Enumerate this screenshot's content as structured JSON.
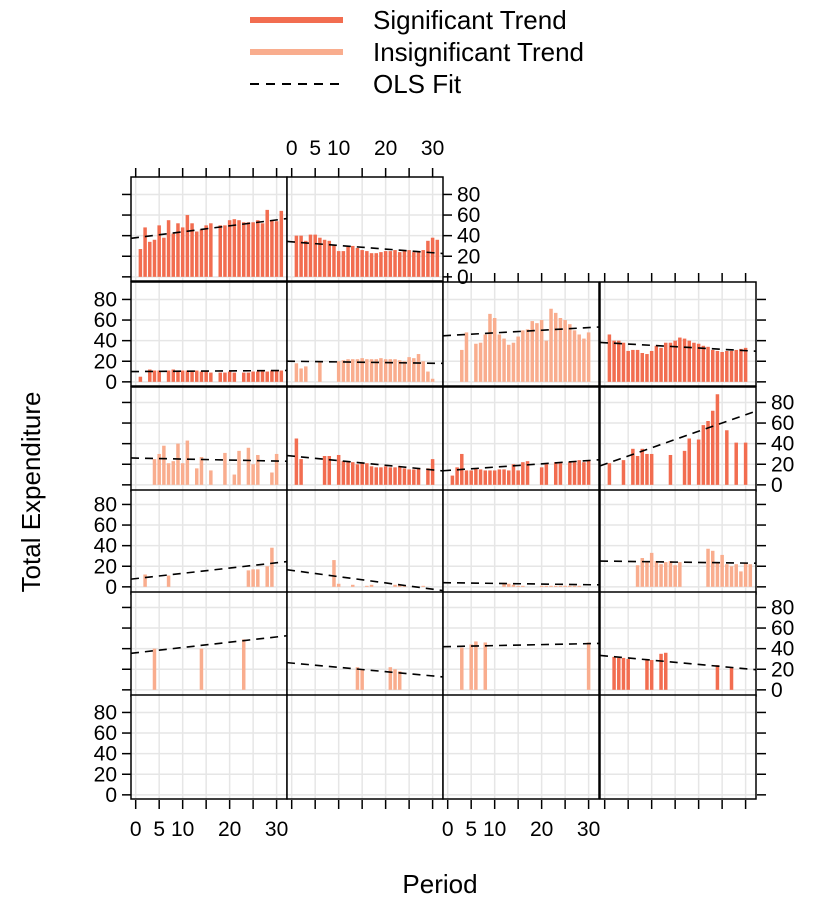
{
  "chart_data": {
    "type": "bar",
    "xlabel": "Period",
    "ylabel": "Total Expenditure",
    "xlim": [
      -1,
      32
    ],
    "ylim": [
      -5,
      95
    ],
    "x_ticks": [
      0,
      5,
      10,
      15,
      20,
      25,
      30
    ],
    "x_tick_labels": [
      "0",
      "5",
      "10",
      "",
      "20",
      "",
      "30"
    ],
    "y_ticks": [
      0,
      20,
      40,
      60,
      80
    ],
    "y_tick_labels": [
      "0",
      "20",
      "40",
      "60",
      "80"
    ],
    "grid": true,
    "legend_position": "top-center",
    "colors": {
      "significant": "#f26d50",
      "insignificant": "#f9ad8e",
      "ols": "#000000"
    },
    "legend": [
      {
        "key": "significant",
        "label": "Significant Trend",
        "style": "line"
      },
      {
        "key": "insignificant",
        "label": "Insignificant Trend",
        "style": "line"
      },
      {
        "key": "ols",
        "label": "OLS Fit",
        "style": "dashed"
      }
    ],
    "panels": [
      {
        "row": 0,
        "col": 0,
        "trend": "significant",
        "ols": [
          38,
          56
        ],
        "x": [
          1,
          2,
          3,
          4,
          5,
          6,
          7,
          8,
          9,
          10,
          11,
          12,
          13,
          14,
          15,
          16,
          18,
          19,
          20,
          21,
          22,
          23,
          24,
          25,
          26,
          27,
          28,
          29,
          30,
          31
        ],
        "y": [
          27,
          48,
          34,
          36,
          50,
          38,
          55,
          42,
          52,
          48,
          60,
          52,
          44,
          46,
          50,
          52,
          50,
          50,
          55,
          56,
          55,
          53,
          53,
          53,
          55,
          52,
          65,
          55,
          54,
          64
        ]
      },
      {
        "row": 0,
        "col": 1,
        "trend": "significant",
        "ols": [
          34,
          23
        ],
        "x": [
          1,
          2,
          3,
          4,
          5,
          6,
          7,
          8,
          9,
          10,
          11,
          12,
          13,
          14,
          15,
          16,
          17,
          18,
          19,
          20,
          21,
          22,
          23,
          24,
          25,
          26,
          27,
          28,
          29,
          30,
          31
        ],
        "y": [
          40,
          40,
          35,
          41,
          41,
          38,
          36,
          35,
          31,
          25,
          25,
          29,
          30,
          28,
          26,
          25,
          23,
          23,
          24,
          25,
          25,
          26,
          24,
          25,
          26,
          24,
          24,
          26,
          35,
          38,
          36
        ]
      },
      {
        "row": 1,
        "col": 0,
        "trend": "significant",
        "ols": [
          10,
          11
        ],
        "x": [
          1,
          3,
          4,
          5,
          7,
          8,
          9,
          10,
          11,
          12,
          13,
          14,
          15,
          16,
          18,
          19,
          20,
          21,
          23,
          24,
          25,
          26,
          27,
          28,
          29,
          30,
          31
        ],
        "y": [
          5,
          12,
          11,
          11,
          11,
          12,
          10,
          11,
          11,
          10,
          11,
          10,
          10,
          9,
          9,
          9,
          10,
          9,
          9,
          9,
          10,
          10,
          10,
          10,
          11,
          11,
          11
        ]
      },
      {
        "row": 1,
        "col": 1,
        "trend": "insignificant",
        "ols": [
          20,
          18
        ],
        "x": [
          1,
          2,
          3,
          6,
          10,
          11,
          12,
          13,
          14,
          15,
          16,
          17,
          18,
          19,
          20,
          21,
          22,
          23,
          24,
          25,
          26,
          27,
          28,
          29,
          30
        ],
        "y": [
          18,
          13,
          15,
          20,
          20,
          21,
          22,
          22,
          22,
          23,
          22,
          22,
          22,
          23,
          22,
          22,
          22,
          21,
          20,
          24,
          23,
          27,
          20,
          10,
          3
        ]
      },
      {
        "row": 1,
        "col": 2,
        "trend": "insignificant",
        "ols": [
          45,
          53
        ],
        "x": [
          3,
          4,
          6,
          7,
          8,
          9,
          10,
          11,
          12,
          13,
          14,
          15,
          16,
          17,
          18,
          19,
          20,
          21,
          22,
          23,
          24,
          25,
          26,
          27,
          28,
          29,
          30
        ],
        "y": [
          31,
          48,
          37,
          38,
          46,
          66,
          62,
          46,
          42,
          36,
          38,
          44,
          50,
          51,
          59,
          57,
          60,
          40,
          71,
          67,
          62,
          60,
          56,
          50,
          46,
          42,
          48
        ]
      },
      {
        "row": 1,
        "col": 3,
        "trend": "significant",
        "ols": [
          38,
          30
        ],
        "x": [
          1,
          2,
          3,
          4,
          5,
          6,
          7,
          8,
          9,
          10,
          11,
          12,
          13,
          14,
          15,
          16,
          17,
          18,
          19,
          20,
          21,
          22,
          23,
          24,
          25,
          26,
          27,
          28,
          29,
          30
        ],
        "y": [
          46,
          40,
          40,
          38,
          30,
          31,
          31,
          28,
          27,
          30,
          35,
          33,
          38,
          38,
          40,
          43,
          42,
          40,
          38,
          37,
          35,
          34,
          31,
          30,
          29,
          30,
          30,
          31,
          32,
          33
        ]
      },
      {
        "row": 2,
        "col": 0,
        "trend": "insignificant",
        "ols": [
          26,
          23
        ],
        "x": [
          4,
          5,
          6,
          7,
          8,
          9,
          10,
          11,
          13,
          14,
          16,
          19,
          21,
          22,
          24,
          25,
          26,
          29,
          30
        ],
        "y": [
          25,
          30,
          38,
          21,
          23,
          40,
          21,
          43,
          16,
          27,
          14,
          31,
          10,
          33,
          36,
          20,
          29,
          12,
          30
        ]
      },
      {
        "row": 2,
        "col": 1,
        "trend": "significant",
        "ols": [
          28,
          14
        ],
        "x": [
          1,
          2,
          7,
          8,
          10,
          11,
          12,
          13,
          14,
          15,
          16,
          17,
          18,
          19,
          20,
          21,
          22,
          23,
          24,
          25,
          26,
          27,
          29,
          30
        ],
        "y": [
          45,
          25,
          28,
          28,
          29,
          23,
          22,
          22,
          20,
          21,
          21,
          18,
          17,
          17,
          18,
          17,
          17,
          18,
          16,
          15,
          15,
          16,
          16,
          25
        ]
      },
      {
        "row": 2,
        "col": 2,
        "trend": "significant",
        "ols": [
          14,
          24
        ],
        "x": [
          1,
          2,
          3,
          4,
          5,
          6,
          7,
          8,
          9,
          10,
          11,
          12,
          13,
          14,
          15,
          16,
          17,
          20,
          21,
          23,
          24,
          26,
          27,
          28,
          29,
          30
        ],
        "y": [
          9,
          17,
          30,
          14,
          14,
          16,
          15,
          14,
          14,
          14,
          15,
          15,
          14,
          20,
          14,
          22,
          23,
          17,
          20,
          22,
          21,
          22,
          22,
          24,
          22,
          24
        ]
      },
      {
        "row": 2,
        "col": 3,
        "trend": "significant",
        "ols": [
          20,
          70
        ],
        "x": [
          1,
          4,
          6,
          7,
          8,
          9,
          10,
          14,
          17,
          18,
          20,
          21,
          22,
          23,
          24,
          26,
          28,
          30
        ],
        "y": [
          21,
          24,
          35,
          28,
          35,
          30,
          30,
          29,
          33,
          45,
          44,
          58,
          62,
          72,
          88,
          53,
          41,
          41
        ]
      },
      {
        "row": 3,
        "col": 0,
        "trend": "insignificant",
        "ols": [
          8,
          24
        ],
        "x": [
          2,
          7,
          24,
          25,
          26,
          28,
          29
        ],
        "y": [
          12,
          11,
          16,
          17,
          17,
          20,
          38
        ]
      },
      {
        "row": 3,
        "col": 1,
        "trend": "insignificant",
        "ols": [
          16,
          -3
        ],
        "x": [
          9,
          10,
          13,
          16,
          17,
          22,
          23,
          24,
          28
        ],
        "y": [
          26,
          3,
          2,
          1,
          2,
          2,
          2,
          1,
          1
        ]
      },
      {
        "row": 3,
        "col": 2,
        "trend": "insignificant",
        "ols": [
          4,
          2
        ],
        "x": [
          12,
          13,
          14,
          15,
          16,
          20,
          21,
          22,
          23,
          24,
          25,
          26,
          27,
          28
        ],
        "y": [
          4,
          3,
          2,
          1,
          1,
          1,
          1,
          1,
          1,
          1,
          1,
          1,
          1,
          1
        ]
      },
      {
        "row": 3,
        "col": 3,
        "trend": "insignificant",
        "ols": [
          25,
          23
        ],
        "x": [
          7,
          8,
          9,
          10,
          11,
          12,
          13,
          14,
          15,
          16,
          22,
          23,
          24,
          25,
          26,
          27,
          28,
          29,
          30,
          31
        ],
        "y": [
          21,
          28,
          24,
          33,
          25,
          22,
          24,
          25,
          21,
          24,
          37,
          35,
          23,
          31,
          22,
          20,
          22,
          15,
          23,
          22
        ]
      },
      {
        "row": 4,
        "col": 0,
        "trend": "insignificant",
        "ols": [
          36,
          52
        ],
        "x": [
          4,
          14,
          23
        ],
        "y": [
          40,
          40,
          49
        ]
      },
      {
        "row": 4,
        "col": 1,
        "trend": "insignificant",
        "ols": [
          26,
          13
        ],
        "x": [
          14,
          15,
          21,
          22,
          23
        ],
        "y": [
          22,
          20,
          22,
          20,
          18
        ]
      },
      {
        "row": 4,
        "col": 2,
        "trend": "insignificant",
        "ols": [
          42,
          45
        ],
        "x": [
          3,
          5,
          6,
          8,
          30
        ],
        "y": [
          41,
          44,
          47,
          46,
          46
        ]
      },
      {
        "row": 4,
        "col": 3,
        "trend": "significant",
        "ols": [
          33,
          20
        ],
        "x": [
          2,
          3,
          4,
          5,
          9,
          10,
          12,
          13,
          24,
          27
        ],
        "y": [
          32,
          31,
          31,
          30,
          30,
          29,
          35,
          36,
          24,
          22
        ]
      }
    ]
  }
}
